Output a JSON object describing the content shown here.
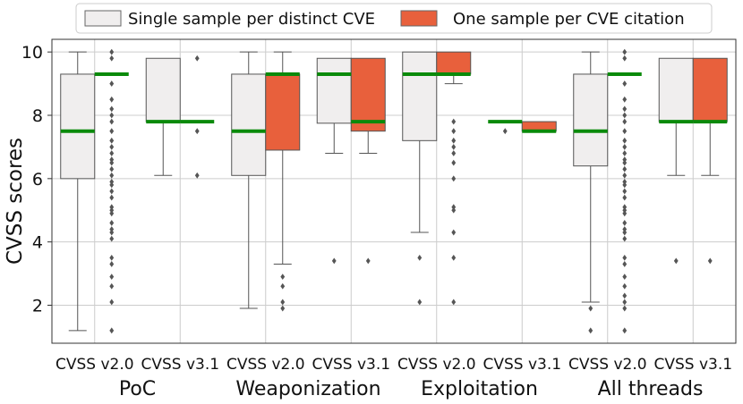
{
  "chart_data": {
    "type": "boxplot",
    "ylabel": "CVSS scores",
    "ylim": [
      0.8,
      10.4
    ],
    "yticks": [
      2,
      4,
      6,
      8,
      10
    ],
    "grid": true,
    "legend_position": "top-center",
    "legend": [
      {
        "label": "Single sample per distinct CVE",
        "color": "#f0eeee"
      },
      {
        "label": "One sample per CVE citation",
        "color": "#e8603c"
      }
    ],
    "colors": {
      "single": "#f0eeee",
      "citation": "#e8603c",
      "median": "#0a8a0a",
      "outline": "#555555",
      "flier": "#555555",
      "grid": "#cccccc"
    },
    "groups": [
      {
        "name": "PoC",
        "subgroups": [
          {
            "label": "CVSS v2.0",
            "single": {
              "q1": 6.0,
              "median": 7.5,
              "q3": 9.3,
              "whisker_low": 1.2,
              "whisker_high": 10.0,
              "fliers": []
            },
            "citation": {
              "q1": 9.3,
              "median": 9.3,
              "q3": 9.3,
              "whisker_low": 9.3,
              "whisker_high": 9.3,
              "fliers": [
                10.0,
                9.8,
                9.0,
                8.5,
                8.2,
                8.0,
                7.8,
                7.5,
                7.2,
                7.0,
                6.8,
                6.6,
                6.5,
                6.3,
                6.1,
                5.9,
                5.8,
                5.6,
                5.4,
                5.1,
                5.0,
                4.9,
                4.6,
                4.4,
                4.3,
                4.1,
                3.5,
                3.3,
                2.9,
                2.6,
                2.1,
                1.2
              ]
            }
          },
          {
            "label": "CVSS v3.1",
            "single": {
              "q1": 7.8,
              "median": 7.8,
              "q3": 9.8,
              "whisker_low": 6.1,
              "whisker_high": 9.8,
              "fliers": []
            },
            "citation": {
              "q1": 7.8,
              "median": 7.8,
              "q3": 7.8,
              "whisker_low": 7.8,
              "whisker_high": 7.8,
              "fliers": [
                9.8,
                7.5,
                6.1
              ]
            }
          }
        ]
      },
      {
        "name": "Weaponization",
        "subgroups": [
          {
            "label": "CVSS v2.0",
            "single": {
              "q1": 6.1,
              "median": 7.5,
              "q3": 9.3,
              "whisker_low": 1.9,
              "whisker_high": 10.0,
              "fliers": []
            },
            "citation": {
              "q1": 6.9,
              "median": 9.3,
              "q3": 9.3,
              "whisker_low": 3.3,
              "whisker_high": 10.0,
              "fliers": [
                2.9,
                2.6,
                2.1,
                1.9
              ]
            }
          },
          {
            "label": "CVSS v3.1",
            "single": {
              "q1": 7.75,
              "median": 9.3,
              "q3": 9.8,
              "whisker_low": 6.8,
              "whisker_high": 9.8,
              "fliers": [
                3.4
              ]
            },
            "citation": {
              "q1": 7.5,
              "median": 7.8,
              "q3": 9.8,
              "whisker_low": 6.8,
              "whisker_high": 9.8,
              "fliers": [
                3.4
              ]
            }
          }
        ]
      },
      {
        "name": "Exploitation",
        "subgroups": [
          {
            "label": "CVSS v2.0",
            "single": {
              "q1": 7.2,
              "median": 9.3,
              "q3": 10.0,
              "whisker_low": 4.3,
              "whisker_high": 10.0,
              "fliers": [
                3.5,
                2.1
              ]
            },
            "citation": {
              "q1": 9.3,
              "median": 9.3,
              "q3": 10.0,
              "whisker_low": 9.0,
              "whisker_high": 10.0,
              "fliers": [
                7.8,
                7.5,
                7.2,
                7.0,
                6.8,
                6.5,
                6.0,
                5.1,
                5.0,
                4.3,
                3.5,
                2.1
              ]
            }
          },
          {
            "label": "CVSS v3.1",
            "single": {
              "q1": 7.8,
              "median": 7.8,
              "q3": 7.8,
              "whisker_low": 7.8,
              "whisker_high": 7.8,
              "fliers": [
                7.5
              ]
            },
            "citation": {
              "q1": 7.5,
              "median": 7.5,
              "q3": 7.8,
              "whisker_low": 7.5,
              "whisker_high": 7.8,
              "fliers": []
            }
          }
        ]
      },
      {
        "name": "All threads",
        "subgroups": [
          {
            "label": "CVSS v2.0",
            "single": {
              "q1": 6.4,
              "median": 7.5,
              "q3": 9.3,
              "whisker_low": 2.1,
              "whisker_high": 10.0,
              "fliers": [
                1.9,
                1.2
              ]
            },
            "citation": {
              "q1": 9.3,
              "median": 9.3,
              "q3": 9.3,
              "whisker_low": 9.3,
              "whisker_high": 9.3,
              "fliers": [
                10.0,
                9.8,
                9.0,
                8.5,
                8.2,
                8.0,
                7.8,
                7.5,
                7.2,
                7.0,
                6.8,
                6.6,
                6.5,
                6.3,
                6.1,
                5.9,
                5.8,
                5.6,
                5.4,
                5.1,
                5.0,
                4.9,
                4.6,
                4.4,
                4.3,
                4.1,
                3.5,
                3.3,
                2.9,
                2.6,
                2.3,
                2.1,
                1.9,
                1.2
              ]
            }
          },
          {
            "label": "CVSS v3.1",
            "single": {
              "q1": 7.8,
              "median": 7.8,
              "q3": 9.8,
              "whisker_low": 6.1,
              "whisker_high": 9.8,
              "fliers": [
                3.4
              ]
            },
            "citation": {
              "q1": 7.8,
              "median": 7.8,
              "q3": 9.8,
              "whisker_low": 6.1,
              "whisker_high": 9.8,
              "fliers": [
                3.4
              ]
            }
          }
        ]
      }
    ]
  }
}
